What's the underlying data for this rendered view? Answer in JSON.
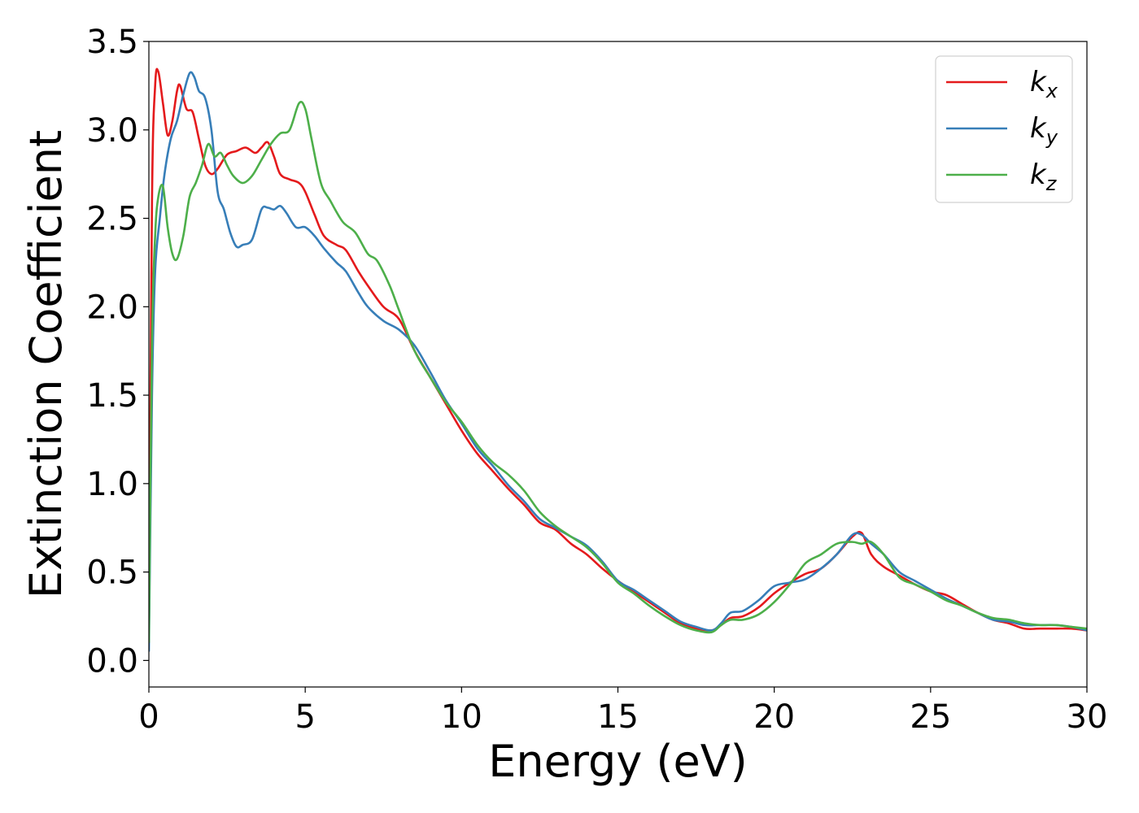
{
  "chart_data": {
    "type": "line",
    "title": "",
    "xlabel": "Energy (eV)",
    "ylabel": "Extinction Coefficient",
    "xlim": [
      0,
      30
    ],
    "ylim": [
      -0.15,
      3.5
    ],
    "xticks": [
      0,
      5,
      10,
      15,
      20,
      25,
      30
    ],
    "xtick_labels": [
      "0",
      "5",
      "10",
      "15",
      "20",
      "25",
      "30"
    ],
    "yticks": [
      0.0,
      0.5,
      1.0,
      1.5,
      2.0,
      2.5,
      3.0,
      3.5
    ],
    "ytick_labels": [
      "0.0",
      "0.5",
      "1.0",
      "1.5",
      "2.0",
      "2.5",
      "3.0",
      "3.5"
    ],
    "grid": false,
    "legend_position": "top-right",
    "series": [
      {
        "name": "k",
        "subscript": "x",
        "color": "#e41a1c",
        "x": [
          0,
          0.1,
          0.2,
          0.3,
          0.45,
          0.6,
          0.75,
          0.9,
          1.0,
          1.2,
          1.4,
          1.6,
          1.8,
          2.0,
          2.2,
          2.5,
          2.8,
          3.1,
          3.4,
          3.6,
          3.8,
          4.0,
          4.2,
          4.5,
          4.8,
          5.0,
          5.3,
          5.6,
          6.0,
          6.3,
          6.7,
          7.0,
          7.5,
          8.0,
          8.5,
          9.0,
          9.5,
          10.0,
          10.5,
          11.0,
          11.5,
          12.0,
          12.5,
          13.0,
          13.5,
          14.0,
          14.5,
          15.0,
          15.5,
          16.0,
          16.5,
          17.0,
          17.5,
          18.0,
          18.3,
          18.6,
          19.0,
          19.5,
          20.0,
          20.5,
          21.0,
          21.5,
          22.0,
          22.5,
          22.8,
          23.1,
          23.5,
          24.0,
          24.5,
          25.0,
          25.5,
          26.0,
          26.5,
          27.0,
          27.5,
          28.0,
          28.5,
          29.0,
          29.5,
          30.0
        ],
        "y": [
          0.1,
          2.6,
          3.25,
          3.33,
          3.15,
          2.97,
          3.05,
          3.22,
          3.25,
          3.12,
          3.1,
          2.95,
          2.8,
          2.75,
          2.78,
          2.86,
          2.88,
          2.9,
          2.87,
          2.9,
          2.93,
          2.85,
          2.75,
          2.72,
          2.7,
          2.65,
          2.52,
          2.4,
          2.35,
          2.32,
          2.2,
          2.12,
          2.0,
          1.93,
          1.75,
          1.6,
          1.45,
          1.3,
          1.17,
          1.07,
          0.97,
          0.88,
          0.78,
          0.74,
          0.66,
          0.6,
          0.52,
          0.45,
          0.39,
          0.33,
          0.27,
          0.21,
          0.18,
          0.17,
          0.2,
          0.24,
          0.25,
          0.3,
          0.38,
          0.44,
          0.49,
          0.52,
          0.6,
          0.7,
          0.72,
          0.6,
          0.53,
          0.48,
          0.43,
          0.39,
          0.37,
          0.32,
          0.27,
          0.23,
          0.21,
          0.18,
          0.18,
          0.18,
          0.18,
          0.17
        ]
      },
      {
        "name": "k",
        "subscript": "y",
        "color": "#377eb8",
        "x": [
          0,
          0.1,
          0.2,
          0.35,
          0.5,
          0.7,
          0.9,
          1.1,
          1.3,
          1.45,
          1.6,
          1.8,
          2.0,
          2.2,
          2.4,
          2.6,
          2.8,
          3.0,
          3.3,
          3.6,
          3.8,
          4.0,
          4.2,
          4.4,
          4.7,
          5.0,
          5.3,
          5.6,
          6.0,
          6.3,
          6.7,
          7.0,
          7.5,
          8.0,
          8.5,
          9.0,
          9.5,
          10.0,
          10.5,
          11.0,
          11.5,
          12.0,
          12.5,
          13.0,
          13.5,
          14.0,
          14.5,
          15.0,
          15.5,
          16.0,
          16.5,
          17.0,
          17.5,
          18.0,
          18.3,
          18.6,
          19.0,
          19.5,
          20.0,
          20.5,
          21.0,
          21.5,
          22.0,
          22.5,
          22.8,
          23.1,
          23.5,
          24.0,
          24.5,
          25.0,
          25.5,
          26.0,
          26.5,
          27.0,
          27.5,
          28.0,
          28.5,
          29.0,
          29.5,
          30.0
        ],
        "y": [
          0.05,
          1.5,
          2.2,
          2.5,
          2.75,
          2.95,
          3.05,
          3.2,
          3.32,
          3.3,
          3.22,
          3.18,
          3.0,
          2.65,
          2.55,
          2.42,
          2.34,
          2.35,
          2.38,
          2.55,
          2.56,
          2.55,
          2.57,
          2.53,
          2.45,
          2.45,
          2.4,
          2.33,
          2.25,
          2.2,
          2.08,
          2.0,
          1.92,
          1.87,
          1.78,
          1.63,
          1.47,
          1.34,
          1.2,
          1.1,
          0.99,
          0.9,
          0.8,
          0.75,
          0.7,
          0.65,
          0.56,
          0.45,
          0.4,
          0.34,
          0.28,
          0.22,
          0.19,
          0.17,
          0.21,
          0.27,
          0.28,
          0.34,
          0.42,
          0.44,
          0.46,
          0.52,
          0.6,
          0.71,
          0.71,
          0.66,
          0.6,
          0.5,
          0.45,
          0.4,
          0.35,
          0.31,
          0.27,
          0.23,
          0.22,
          0.2,
          0.2,
          0.2,
          0.19,
          0.17
        ]
      },
      {
        "name": "k",
        "subscript": "z",
        "color": "#4daf4a",
        "x": [
          0,
          0.1,
          0.2,
          0.3,
          0.45,
          0.6,
          0.75,
          0.9,
          1.1,
          1.3,
          1.5,
          1.7,
          1.9,
          2.1,
          2.3,
          2.5,
          2.7,
          3.0,
          3.3,
          3.6,
          3.9,
          4.2,
          4.5,
          4.8,
          5.0,
          5.2,
          5.5,
          5.8,
          6.2,
          6.6,
          7.0,
          7.3,
          7.7,
          8.0,
          8.5,
          9.0,
          9.5,
          10.0,
          10.5,
          11.0,
          11.5,
          12.0,
          12.5,
          13.0,
          13.5,
          14.0,
          14.5,
          15.0,
          15.5,
          16.0,
          16.5,
          17.0,
          17.5,
          18.0,
          18.3,
          18.6,
          19.0,
          19.5,
          20.0,
          20.5,
          21.0,
          21.5,
          22.0,
          22.5,
          22.8,
          23.1,
          23.5,
          24.0,
          24.5,
          25.0,
          25.5,
          26.0,
          26.5,
          27.0,
          27.5,
          28.0,
          28.5,
          29.0,
          29.5,
          30.0
        ],
        "y": [
          0.1,
          1.8,
          2.4,
          2.62,
          2.68,
          2.45,
          2.3,
          2.27,
          2.4,
          2.62,
          2.7,
          2.8,
          2.92,
          2.85,
          2.87,
          2.8,
          2.74,
          2.7,
          2.74,
          2.83,
          2.92,
          2.98,
          3.0,
          3.15,
          3.12,
          2.95,
          2.7,
          2.6,
          2.48,
          2.42,
          2.3,
          2.26,
          2.12,
          1.98,
          1.75,
          1.6,
          1.46,
          1.35,
          1.22,
          1.12,
          1.05,
          0.96,
          0.84,
          0.76,
          0.7,
          0.64,
          0.55,
          0.44,
          0.38,
          0.31,
          0.25,
          0.2,
          0.17,
          0.16,
          0.2,
          0.23,
          0.23,
          0.26,
          0.33,
          0.43,
          0.55,
          0.6,
          0.66,
          0.67,
          0.66,
          0.67,
          0.6,
          0.47,
          0.43,
          0.39,
          0.34,
          0.31,
          0.27,
          0.24,
          0.23,
          0.21,
          0.2,
          0.2,
          0.19,
          0.18
        ]
      }
    ]
  }
}
